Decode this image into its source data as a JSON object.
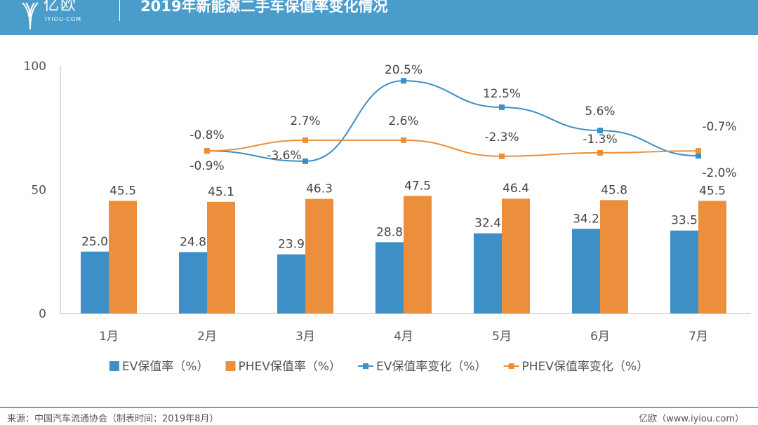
{
  "header": {
    "logo_cn": "亿欧",
    "logo_en": "IYIOU·COM",
    "title": "2019年新能源二手车保值率变化情况"
  },
  "footer": {
    "source": "来源：中国汽车流通协会（制表时间：2019年8月）",
    "brand": "亿欧（www.iyiou.com）"
  },
  "colors": {
    "ev": "#3d8fc6",
    "phev": "#ec8f3c",
    "header": "#4a9ccb"
  },
  "chart_data": {
    "type": "bar+line",
    "categories": [
      "1月",
      "2月",
      "3月",
      "4月",
      "5月",
      "6月",
      "7月"
    ],
    "ylim": [
      0,
      100
    ],
    "yticks": [
      "0",
      "50",
      "100"
    ],
    "series": [
      {
        "name": "EV保值率（%）",
        "type": "bar",
        "values": [
          25.0,
          24.8,
          23.9,
          28.8,
          32.4,
          34.2,
          33.5
        ],
        "labels": [
          "25.0",
          "24.8",
          "23.9",
          "28.8",
          "32.4",
          "34.2",
          "33.5"
        ]
      },
      {
        "name": "PHEV保值率（%）",
        "type": "bar",
        "values": [
          45.5,
          45.1,
          46.3,
          47.5,
          46.4,
          45.8,
          45.5
        ],
        "labels": [
          "45.5",
          "45.1",
          "46.3",
          "47.5",
          "46.4",
          "45.8",
          "45.5"
        ]
      },
      {
        "name": "EV保值率变化（%）",
        "type": "line",
        "values": [
          null,
          -0.9,
          -3.6,
          20.5,
          12.5,
          5.6,
          -2.0
        ],
        "labels": [
          null,
          "-0.9%",
          "-3.6%",
          "20.5%",
          "12.5%",
          "5.6%",
          "-2.0%"
        ],
        "plot_level": [
          null,
          65.7,
          61.5,
          94,
          83.3,
          73.9,
          63.7
        ]
      },
      {
        "name": "PHEV保值率变化（%）",
        "type": "line",
        "values": [
          null,
          -0.8,
          2.7,
          2.6,
          -2.3,
          -1.3,
          -0.7
        ],
        "labels": [
          null,
          "-0.8%",
          "2.7%",
          "2.6%",
          "-2.3%",
          "-1.3%",
          "-0.7%"
        ],
        "plot_level": [
          null,
          65.7,
          70,
          70,
          63.5,
          64.9,
          65.7
        ]
      }
    ],
    "legend_position": "bottom"
  }
}
